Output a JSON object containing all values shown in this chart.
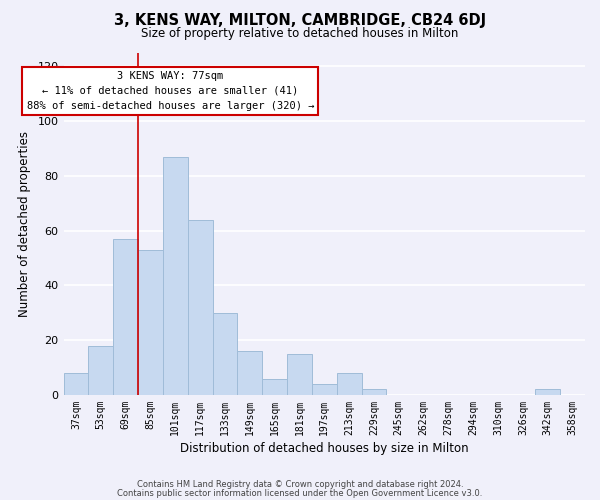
{
  "title": "3, KENS WAY, MILTON, CAMBRIDGE, CB24 6DJ",
  "subtitle": "Size of property relative to detached houses in Milton",
  "xlabel": "Distribution of detached houses by size in Milton",
  "ylabel": "Number of detached properties",
  "bar_labels": [
    "37sqm",
    "53sqm",
    "69sqm",
    "85sqm",
    "101sqm",
    "117sqm",
    "133sqm",
    "149sqm",
    "165sqm",
    "181sqm",
    "197sqm",
    "213sqm",
    "229sqm",
    "245sqm",
    "262sqm",
    "278sqm",
    "294sqm",
    "310sqm",
    "326sqm",
    "342sqm",
    "358sqm"
  ],
  "bar_values": [
    8,
    18,
    57,
    53,
    87,
    64,
    30,
    16,
    6,
    15,
    4,
    8,
    2,
    0,
    0,
    0,
    0,
    0,
    0,
    2,
    0
  ],
  "bar_color": "#c7d9f0",
  "bar_edge_color": "#a0bcd8",
  "ylim": [
    0,
    125
  ],
  "yticks": [
    0,
    20,
    40,
    60,
    80,
    100,
    120
  ],
  "property_line_bar_index": 2.5,
  "annotation_title": "3 KENS WAY: 77sqm",
  "annotation_line1": "← 11% of detached houses are smaller (41)",
  "annotation_line2": "88% of semi-detached houses are larger (320) →",
  "annotation_box_color": "#ffffff",
  "annotation_box_edge_color": "#cc0000",
  "vline_color": "#cc0000",
  "footer_line1": "Contains HM Land Registry data © Crown copyright and database right 2024.",
  "footer_line2": "Contains public sector information licensed under the Open Government Licence v3.0.",
  "background_color": "#f0f0fa",
  "grid_color": "#ffffff"
}
